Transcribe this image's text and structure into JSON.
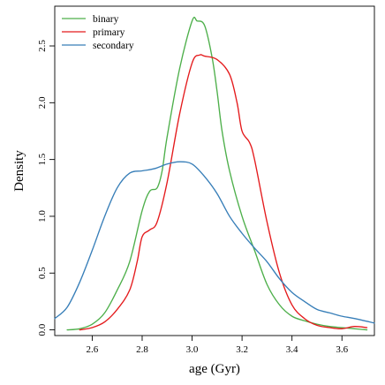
{
  "chart_data": {
    "type": "line",
    "title": "",
    "xlabel": "age (Gyr)",
    "ylabel": "Density",
    "xlim": [
      2.45,
      3.73
    ],
    "ylim": [
      -0.05,
      2.85
    ],
    "xticks": [
      2.6,
      2.8,
      3.0,
      3.2,
      3.4,
      3.6
    ],
    "xtick_labels": [
      "2.6",
      "2.8",
      "3.0",
      "3.2",
      "3.4",
      "3.6"
    ],
    "yticks": [
      0.0,
      0.5,
      1.0,
      1.5,
      2.0,
      2.5
    ],
    "ytick_labels": [
      "0.0",
      "0.5",
      "1.0",
      "1.5",
      "2.0",
      "2.5"
    ],
    "grid": false,
    "legend_position": "top-left",
    "series": [
      {
        "name": "binary",
        "color": "#4daf4a",
        "x": [
          2.5,
          2.55,
          2.6,
          2.65,
          2.7,
          2.75,
          2.8,
          2.83,
          2.86,
          2.88,
          2.9,
          2.95,
          3.0,
          3.02,
          3.05,
          3.08,
          3.1,
          3.12,
          3.15,
          3.2,
          3.25,
          3.3,
          3.35,
          3.4,
          3.45,
          3.5,
          3.55,
          3.6,
          3.65,
          3.7
        ],
        "y": [
          0.0,
          0.01,
          0.05,
          0.15,
          0.35,
          0.6,
          1.05,
          1.22,
          1.25,
          1.4,
          1.7,
          2.3,
          2.72,
          2.72,
          2.68,
          2.4,
          2.1,
          1.75,
          1.4,
          1.0,
          0.7,
          0.4,
          0.22,
          0.12,
          0.08,
          0.05,
          0.03,
          0.02,
          0.01,
          0.0
        ]
      },
      {
        "name": "primary",
        "color": "#e41a1c",
        "x": [
          2.55,
          2.6,
          2.65,
          2.7,
          2.75,
          2.78,
          2.8,
          2.83,
          2.86,
          2.9,
          2.95,
          3.0,
          3.03,
          3.05,
          3.1,
          3.15,
          3.18,
          3.2,
          3.23,
          3.25,
          3.3,
          3.35,
          3.4,
          3.45,
          3.5,
          3.55,
          3.6,
          3.65,
          3.7
        ],
        "y": [
          0.0,
          0.02,
          0.07,
          0.18,
          0.35,
          0.6,
          0.82,
          0.88,
          0.95,
          1.3,
          1.9,
          2.35,
          2.42,
          2.41,
          2.38,
          2.25,
          2.0,
          1.75,
          1.65,
          1.5,
          0.95,
          0.5,
          0.22,
          0.1,
          0.04,
          0.02,
          0.01,
          0.03,
          0.02
        ]
      },
      {
        "name": "secondary",
        "color": "#377eb8",
        "x": [
          2.45,
          2.5,
          2.55,
          2.6,
          2.65,
          2.7,
          2.75,
          2.8,
          2.85,
          2.9,
          2.95,
          3.0,
          3.05,
          3.1,
          3.15,
          3.2,
          3.25,
          3.3,
          3.35,
          3.4,
          3.45,
          3.5,
          3.55,
          3.6,
          3.65,
          3.73
        ],
        "y": [
          0.1,
          0.2,
          0.42,
          0.7,
          1.0,
          1.25,
          1.38,
          1.4,
          1.42,
          1.46,
          1.48,
          1.46,
          1.35,
          1.2,
          1.0,
          0.85,
          0.72,
          0.6,
          0.45,
          0.33,
          0.25,
          0.18,
          0.15,
          0.12,
          0.1,
          0.06
        ]
      }
    ]
  }
}
